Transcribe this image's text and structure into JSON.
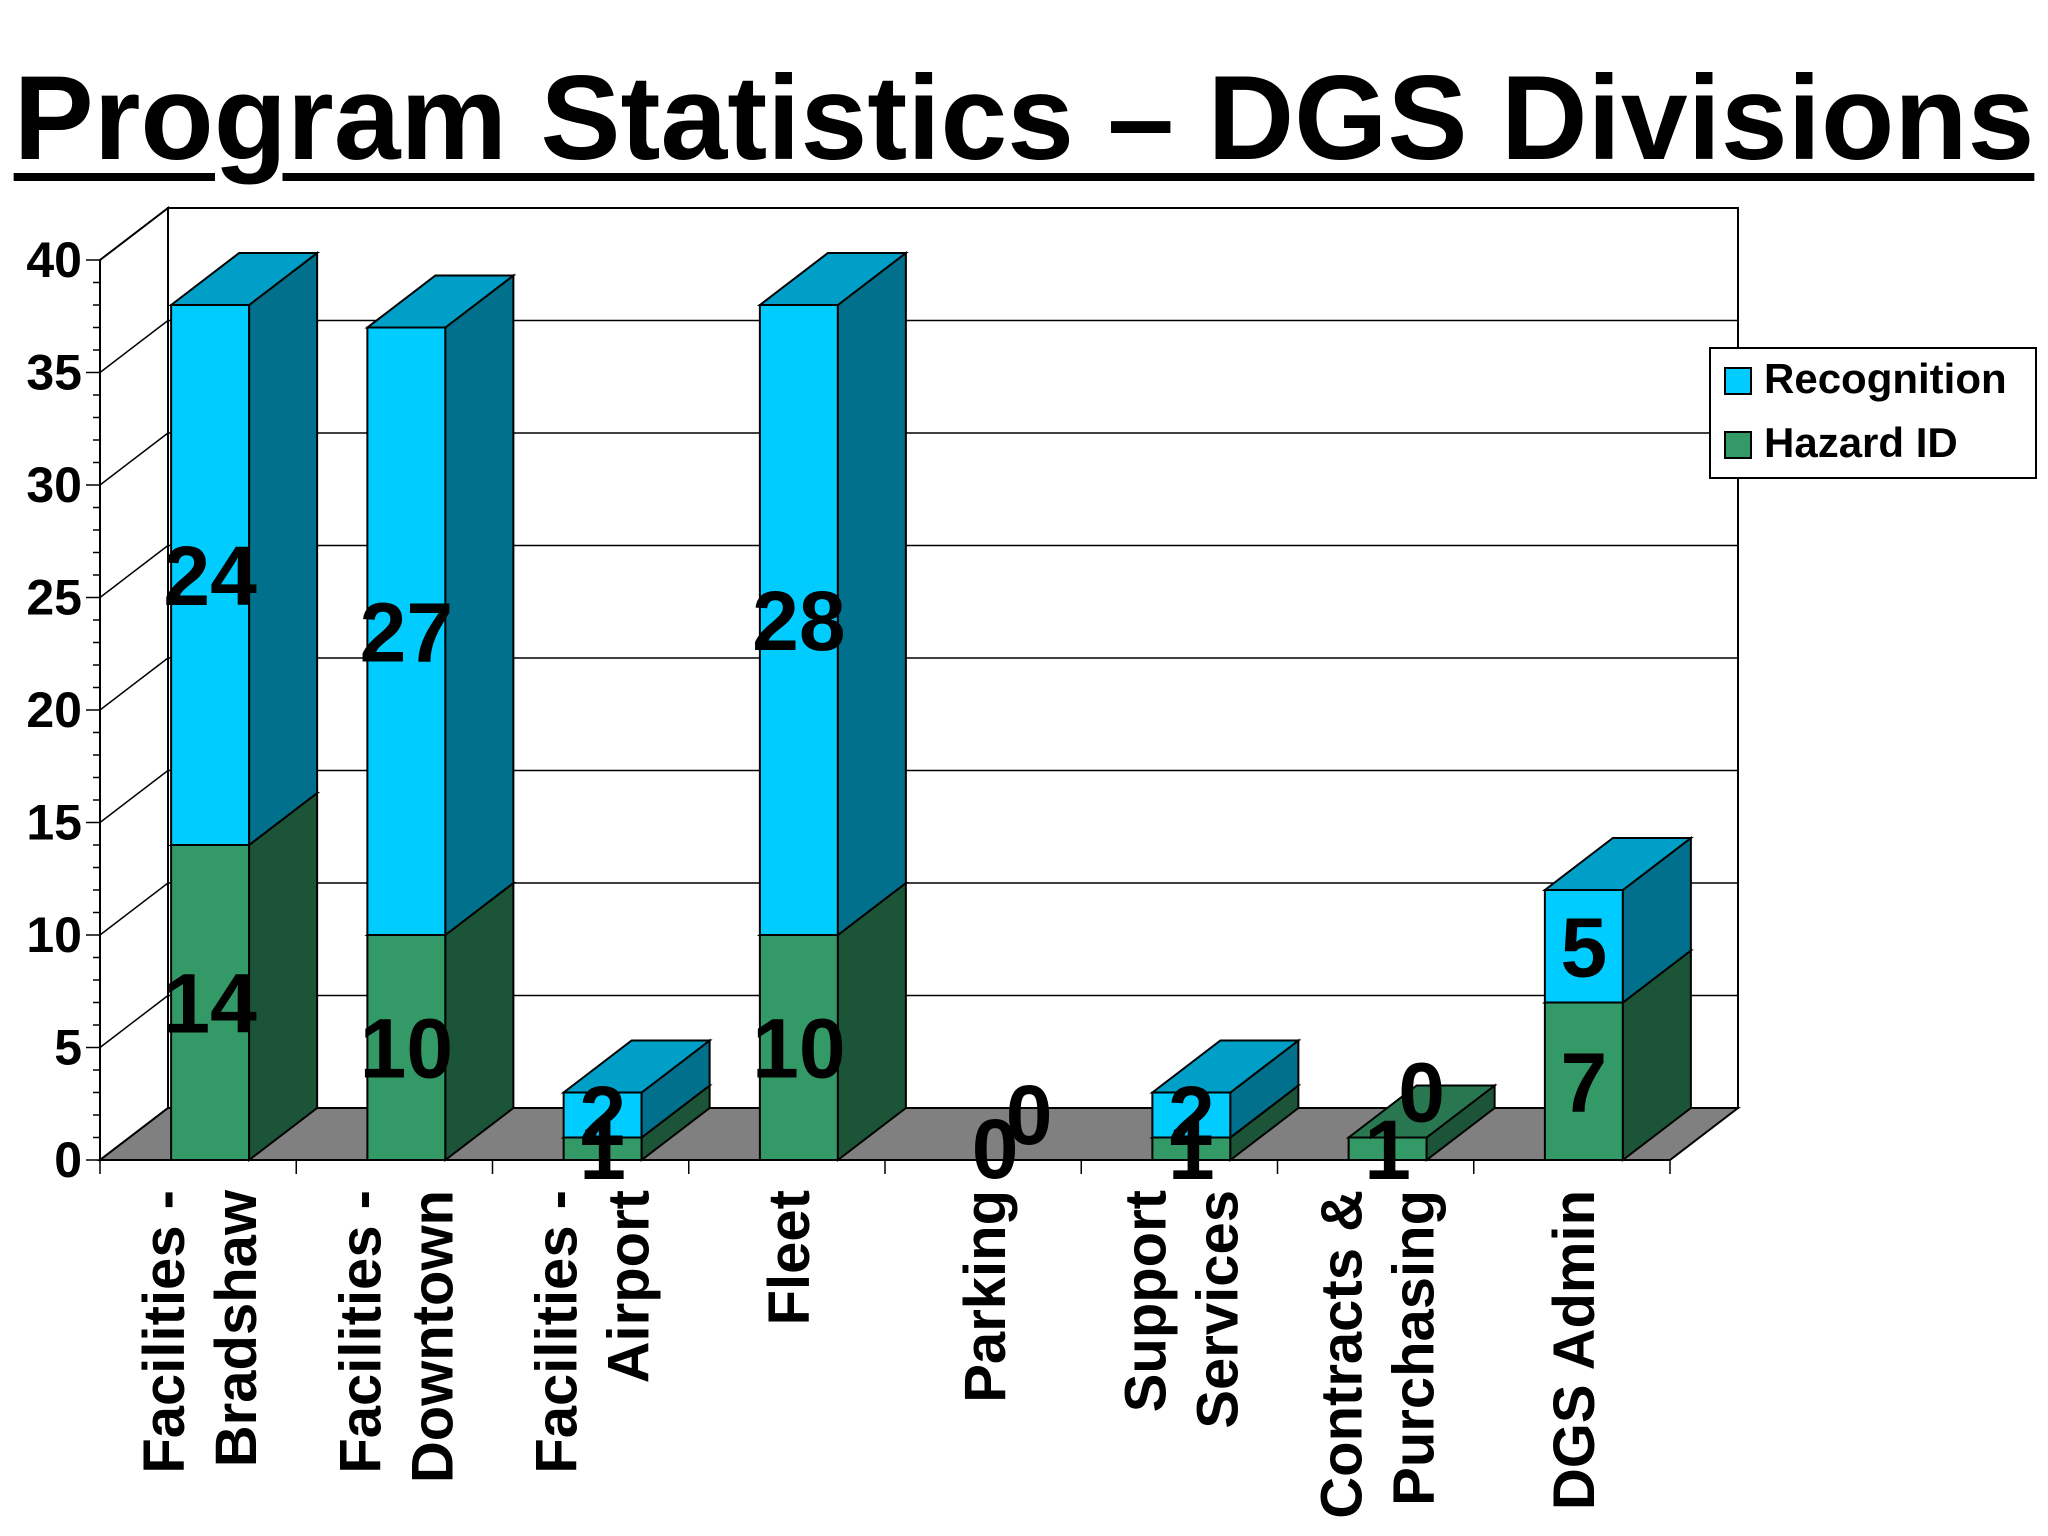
{
  "chart_data": {
    "type": "bar",
    "stacked": true,
    "three_d": true,
    "title": "Program Statistics – DGS Divisions",
    "categories": [
      [
        "Facilities -",
        "Bradshaw"
      ],
      [
        "Facilities -",
        "Downtown"
      ],
      [
        "Facilities -",
        "Airport"
      ],
      [
        "Fleet"
      ],
      [
        "Parking"
      ],
      [
        "Support",
        "Services"
      ],
      [
        "Contracts &",
        "Purchasing"
      ],
      [
        "DGS Admin"
      ]
    ],
    "series": [
      {
        "name": "Hazard ID",
        "values": [
          14,
          10,
          1,
          10,
          0,
          1,
          1,
          7
        ],
        "color": "#339966"
      },
      {
        "name": "Recognition",
        "values": [
          24,
          27,
          2,
          28,
          0,
          2,
          0,
          5
        ],
        "color": "#00CCFF"
      }
    ],
    "y_ticks": [
      0,
      5,
      10,
      15,
      20,
      25,
      30,
      35,
      40
    ],
    "ylim": [
      0,
      40
    ],
    "xlabel": "",
    "ylabel": "",
    "legend": {
      "position": "right",
      "order": [
        "Recognition",
        "Hazard ID"
      ]
    },
    "gridlines": true,
    "colors": {
      "floor": "#808080",
      "text": "#000000"
    }
  }
}
